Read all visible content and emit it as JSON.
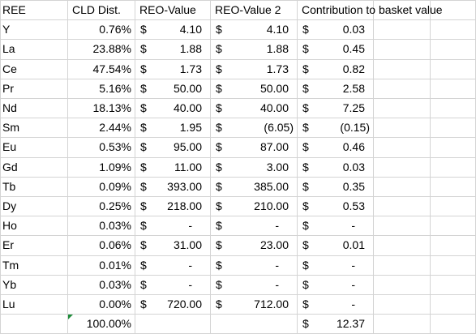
{
  "currency_symbol": "$",
  "header": [
    "REE",
    "CLD Dist.",
    "REO-Value",
    "REO-Value 2",
    "Contribution to basket value"
  ],
  "rows": [
    {
      "ree": "Y",
      "dist": "0.76%",
      "reo": "4.10",
      "reo2": "4.10",
      "contrib": "0.03"
    },
    {
      "ree": "La",
      "dist": "23.88%",
      "reo": "1.88",
      "reo2": "1.88",
      "contrib": "0.45"
    },
    {
      "ree": "Ce",
      "dist": "47.54%",
      "reo": "1.73",
      "reo2": "1.73",
      "contrib": "0.82"
    },
    {
      "ree": "Pr",
      "dist": "5.16%",
      "reo": "50.00",
      "reo2": "50.00",
      "contrib": "2.58"
    },
    {
      "ree": "Nd",
      "dist": "18.13%",
      "reo": "40.00",
      "reo2": "40.00",
      "contrib": "7.25"
    },
    {
      "ree": "Sm",
      "dist": "2.44%",
      "reo": "1.95",
      "reo2": "(6.05)",
      "contrib": "(0.15)"
    },
    {
      "ree": "Eu",
      "dist": "0.53%",
      "reo": "95.00",
      "reo2": "87.00",
      "contrib": "0.46"
    },
    {
      "ree": "Gd",
      "dist": "1.09%",
      "reo": "11.00",
      "reo2": "3.00",
      "contrib": "0.03"
    },
    {
      "ree": "Tb",
      "dist": "0.09%",
      "reo": "393.00",
      "reo2": "385.00",
      "contrib": "0.35"
    },
    {
      "ree": "Dy",
      "dist": "0.25%",
      "reo": "218.00",
      "reo2": "210.00",
      "contrib": "0.53"
    },
    {
      "ree": "Ho",
      "dist": "0.03%",
      "reo": "-",
      "reo2": "-",
      "contrib": "-"
    },
    {
      "ree": "Er",
      "dist": "0.06%",
      "reo": "31.00",
      "reo2": "23.00",
      "contrib": "0.01"
    },
    {
      "ree": "Tm",
      "dist": "0.01%",
      "reo": "-",
      "reo2": "-",
      "contrib": "-"
    },
    {
      "ree": "Yb",
      "dist": "0.03%",
      "reo": "-",
      "reo2": "-",
      "contrib": "-"
    },
    {
      "ree": "Lu",
      "dist": "0.00%",
      "reo": "720.00",
      "reo2": "712.00",
      "contrib": "-"
    }
  ],
  "total": {
    "dist": "100.00%",
    "contrib": "12.37"
  }
}
